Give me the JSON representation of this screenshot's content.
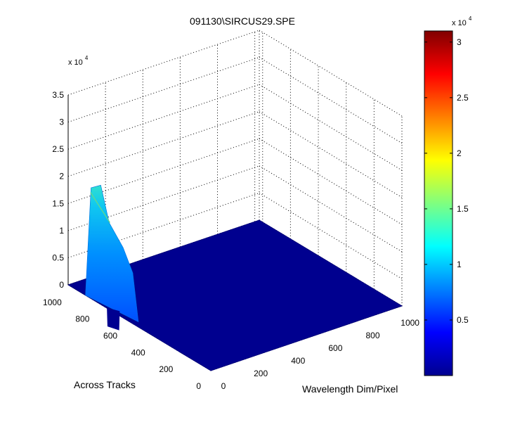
{
  "chart_data": {
    "type": "surface",
    "title": "091130\\SIRCUS29.SPE",
    "xlabel": "Wavelength Dim/Pixel",
    "ylabel": "Across Tracks",
    "zlabel": "",
    "z_exponent": "x 10",
    "z_exponent_power": "4",
    "xlim": [
      0,
      1024
    ],
    "ylim": [
      0,
      1024
    ],
    "zlim": [
      0,
      35000
    ],
    "x_ticks": [
      "0",
      "200",
      "400",
      "600",
      "800",
      "1000"
    ],
    "x_tick_values": [
      0,
      200,
      400,
      600,
      800,
      1000
    ],
    "y_ticks": [
      "0",
      "200",
      "400",
      "600",
      "800",
      "1000"
    ],
    "y_tick_values": [
      0,
      200,
      400,
      600,
      800,
      1000
    ],
    "z_ticks": [
      "0",
      "0.5",
      "1",
      "1.5",
      "2",
      "2.5",
      "3",
      "3.5"
    ],
    "z_tick_values": [
      0,
      5000,
      10000,
      15000,
      20000,
      25000,
      30000,
      35000
    ],
    "grid": true,
    "colormap": "jet",
    "baseline_level": 0,
    "peak": {
      "x_range": [
        0,
        30
      ],
      "y_range": [
        560,
        900
      ],
      "max_value": 21500,
      "typical_value": 12000
    },
    "colorbar": {
      "exponent": "x 10",
      "exponent_power": "4",
      "ticks": [
        "0.5",
        "1",
        "1.5",
        "2",
        "2.5",
        "3"
      ],
      "tick_values": [
        5000,
        10000,
        15000,
        20000,
        25000,
        30000
      ],
      "min": 0,
      "max": 31000
    }
  },
  "colors": {
    "surface_face": "#00008f",
    "surface_edge": "#00007a",
    "grid": "#000000"
  }
}
